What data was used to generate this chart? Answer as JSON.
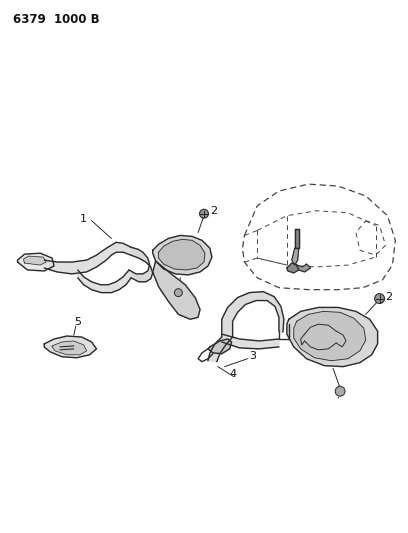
{
  "title": "6379  1000 B",
  "background_color": "#ffffff",
  "line_color": "#2a2a2a",
  "label_color": "#111111",
  "fig_width": 4.08,
  "fig_height": 5.33,
  "dpi": 100
}
